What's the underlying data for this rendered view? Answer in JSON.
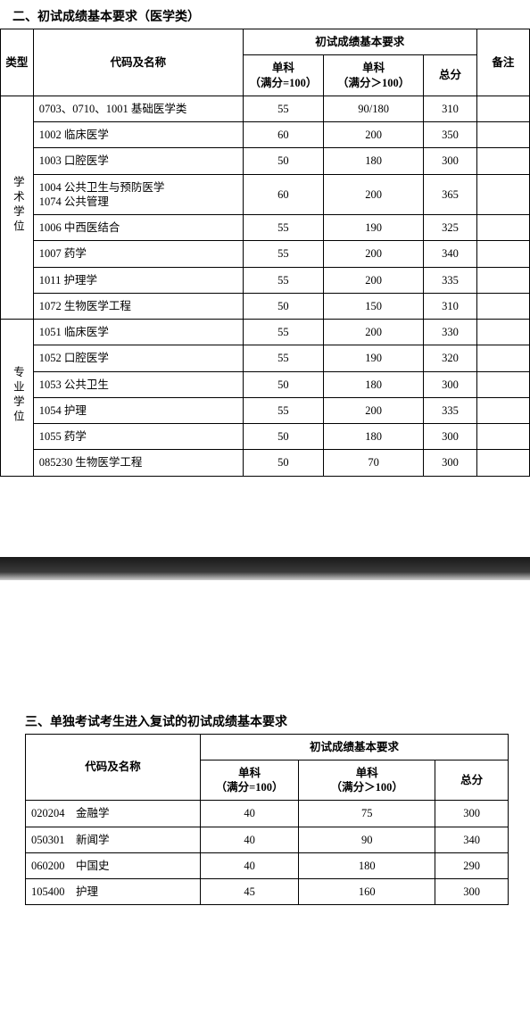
{
  "section2": {
    "title": "二、初试成绩基本要求（医学类）",
    "headers": {
      "type": "类型",
      "code": "代码及名称",
      "score_group": "初试成绩基本要求",
      "s1_l1": "单科",
      "s1_l2": "（满分=100）",
      "s2_l1": "单科",
      "s2_l2": "（满分＞100）",
      "total": "总分",
      "note": "备注"
    },
    "groups": [
      {
        "label": "学术学位",
        "rows": [
          {
            "code": "0703、0710、1001 基础医学类",
            "s1": "55",
            "s2": "90/180",
            "total": "310",
            "note": ""
          },
          {
            "code": "1002 临床医学",
            "s1": "60",
            "s2": "200",
            "total": "350",
            "note": ""
          },
          {
            "code": "1003 口腔医学",
            "s1": "50",
            "s2": "180",
            "total": "300",
            "note": ""
          },
          {
            "code": "1004 公共卫生与预防医学\n1074 公共管理",
            "s1": "60",
            "s2": "200",
            "total": "365",
            "note": ""
          },
          {
            "code": "1006 中西医结合",
            "s1": "55",
            "s2": "190",
            "total": "325",
            "note": ""
          },
          {
            "code": "1007 药学",
            "s1": "55",
            "s2": "200",
            "total": "340",
            "note": ""
          },
          {
            "code": "1011 护理学",
            "s1": "55",
            "s2": "200",
            "total": "335",
            "note": ""
          },
          {
            "code": "1072 生物医学工程",
            "s1": "50",
            "s2": "150",
            "total": "310",
            "note": ""
          }
        ]
      },
      {
        "label": "专业学位",
        "rows": [
          {
            "code": "1051 临床医学",
            "s1": "55",
            "s2": "200",
            "total": "330",
            "note": ""
          },
          {
            "code": "1052 口腔医学",
            "s1": "55",
            "s2": "190",
            "total": "320",
            "note": ""
          },
          {
            "code": "1053 公共卫生",
            "s1": "50",
            "s2": "180",
            "total": "300",
            "note": ""
          },
          {
            "code": "1054 护理",
            "s1": "55",
            "s2": "200",
            "total": "335",
            "note": ""
          },
          {
            "code": "1055 药学",
            "s1": "50",
            "s2": "180",
            "total": "300",
            "note": ""
          },
          {
            "code": "085230 生物医学工程",
            "s1": "50",
            "s2": "70",
            "total": "300",
            "note": ""
          }
        ]
      }
    ]
  },
  "section3": {
    "title": "三、单独考试考生进入复试的初试成绩基本要求",
    "headers": {
      "code": "代码及名称",
      "score_group": "初试成绩基本要求",
      "s1_l1": "单科",
      "s1_l2": "（满分=100）",
      "s2_l1": "单科",
      "s2_l2": "（满分＞100）",
      "total": "总分"
    },
    "rows": [
      {
        "code": "020204　金融学",
        "s1": "40",
        "s2": "75",
        "total": "300"
      },
      {
        "code": "050301　新闻学",
        "s1": "40",
        "s2": "90",
        "total": "340"
      },
      {
        "code": "060200　中国史",
        "s1": "40",
        "s2": "180",
        "total": "290"
      },
      {
        "code": "105400　护理",
        "s1": "45",
        "s2": "160",
        "total": "300"
      }
    ]
  }
}
